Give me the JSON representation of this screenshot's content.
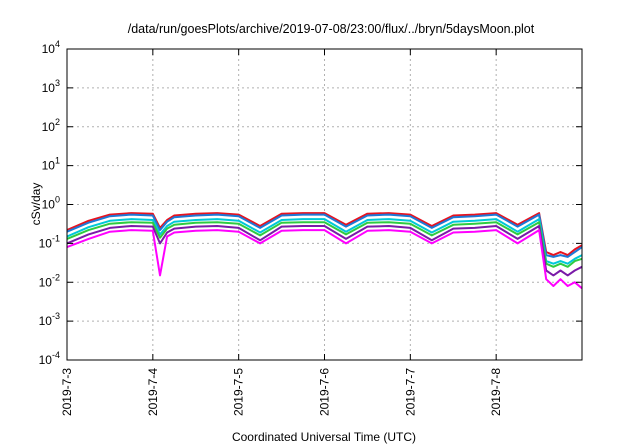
{
  "chart_data": {
    "type": "line",
    "title": "/data/run/goesPlots/archive/2019-07-08/23:00/flux/../bryn/5daysMoon.plot",
    "xlabel": "Coordinated Universal Time (UTC)",
    "ylabel": "cSv/day",
    "yscale": "log",
    "ylim": [
      0.0001,
      10000
    ],
    "xlim": [
      "2019-07-03 00:00",
      "2019-07-09 00:00"
    ],
    "grid": true,
    "legend": "none",
    "y_ticks": [
      {
        "base": "10",
        "exp": "-4",
        "value": 0.0001
      },
      {
        "base": "10",
        "exp": "-3",
        "value": 0.001
      },
      {
        "base": "10",
        "exp": "-2",
        "value": 0.01
      },
      {
        "base": "10",
        "exp": "-1",
        "value": 0.1
      },
      {
        "base": "10",
        "exp": "0",
        "value": 1
      },
      {
        "base": "10",
        "exp": "1",
        "value": 10
      },
      {
        "base": "10",
        "exp": "2",
        "value": 100
      },
      {
        "base": "10",
        "exp": "3",
        "value": 1000
      },
      {
        "base": "10",
        "exp": "4",
        "value": 10000
      }
    ],
    "x_ticks": [
      "2019-7-3",
      "2019-7-4",
      "2019-7-5",
      "2019-7-6",
      "2019-7-7",
      "2019-7-8"
    ],
    "x_times": [
      "2019-07-03 00:00",
      "2019-07-03 06:00",
      "2019-07-03 12:00",
      "2019-07-03 18:00",
      "2019-07-04 00:00",
      "2019-07-04 02:00",
      "2019-07-04 04:00",
      "2019-07-04 06:00",
      "2019-07-04 12:00",
      "2019-07-04 18:00",
      "2019-07-05 00:00",
      "2019-07-05 06:00",
      "2019-07-05 12:00",
      "2019-07-05 18:00",
      "2019-07-06 00:00",
      "2019-07-06 06:00",
      "2019-07-06 12:00",
      "2019-07-06 18:00",
      "2019-07-07 00:00",
      "2019-07-07 06:00",
      "2019-07-07 12:00",
      "2019-07-07 18:00",
      "2019-07-08 00:00",
      "2019-07-08 06:00",
      "2019-07-08 12:00",
      "2019-07-08 14:00",
      "2019-07-08 16:00",
      "2019-07-08 18:00",
      "2019-07-08 20:00",
      "2019-07-08 22:00",
      "2019-07-09 00:00"
    ],
    "series": [
      {
        "color": "#e8121e",
        "values": [
          0.22,
          0.38,
          0.55,
          0.6,
          0.58,
          0.25,
          0.4,
          0.52,
          0.58,
          0.6,
          0.55,
          0.28,
          0.58,
          0.6,
          0.6,
          0.3,
          0.58,
          0.6,
          0.55,
          0.28,
          0.52,
          0.55,
          0.6,
          0.3,
          0.6,
          0.06,
          0.05,
          0.06,
          0.05,
          0.07,
          0.09
        ]
      },
      {
        "color": "#1e78d6",
        "values": [
          0.2,
          0.34,
          0.5,
          0.55,
          0.52,
          0.22,
          0.36,
          0.47,
          0.52,
          0.55,
          0.5,
          0.25,
          0.52,
          0.55,
          0.55,
          0.27,
          0.52,
          0.55,
          0.5,
          0.25,
          0.47,
          0.5,
          0.55,
          0.27,
          0.55,
          0.05,
          0.045,
          0.05,
          0.045,
          0.06,
          0.08
        ]
      },
      {
        "color": "#00c8d8",
        "values": [
          0.15,
          0.26,
          0.38,
          0.42,
          0.4,
          0.17,
          0.28,
          0.36,
          0.4,
          0.42,
          0.38,
          0.19,
          0.4,
          0.42,
          0.42,
          0.2,
          0.4,
          0.42,
          0.38,
          0.19,
          0.36,
          0.38,
          0.42,
          0.2,
          0.42,
          0.035,
          0.03,
          0.035,
          0.03,
          0.04,
          0.05
        ]
      },
      {
        "color": "#2ecc40",
        "values": [
          0.13,
          0.22,
          0.32,
          0.35,
          0.34,
          0.14,
          0.24,
          0.3,
          0.34,
          0.35,
          0.32,
          0.16,
          0.34,
          0.35,
          0.35,
          0.17,
          0.34,
          0.35,
          0.32,
          0.16,
          0.3,
          0.32,
          0.35,
          0.17,
          0.35,
          0.03,
          0.025,
          0.03,
          0.025,
          0.035,
          0.04
        ]
      },
      {
        "color": "#7a1aa8",
        "values": [
          0.1,
          0.17,
          0.25,
          0.28,
          0.27,
          0.1,
          0.19,
          0.24,
          0.27,
          0.28,
          0.25,
          0.12,
          0.27,
          0.28,
          0.28,
          0.13,
          0.27,
          0.28,
          0.25,
          0.12,
          0.24,
          0.25,
          0.28,
          0.13,
          0.28,
          0.02,
          0.015,
          0.02,
          0.015,
          0.02,
          0.025
        ]
      },
      {
        "color": "#ff00ff",
        "values": [
          0.08,
          0.13,
          0.2,
          0.22,
          0.21,
          0.015,
          0.15,
          0.19,
          0.21,
          0.22,
          0.2,
          0.1,
          0.21,
          0.22,
          0.22,
          0.1,
          0.21,
          0.22,
          0.2,
          0.1,
          0.19,
          0.2,
          0.22,
          0.1,
          0.22,
          0.012,
          0.008,
          0.012,
          0.008,
          0.01,
          0.007
        ]
      }
    ]
  }
}
